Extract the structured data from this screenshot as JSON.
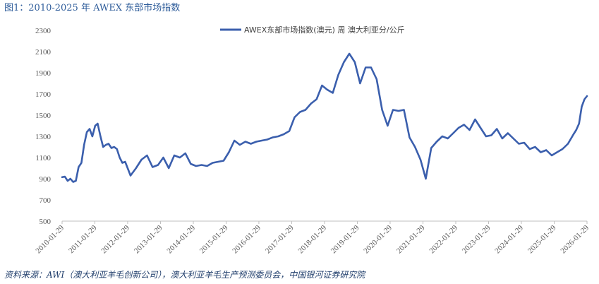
{
  "figure_title": "图1：2010-2025 年 AWEX 东部市场指数",
  "source_note": "资料来源：AWI（澳大利亚羊毛创新公司），澳大利亚羊毛生产预测委员会，中国银河证券研究院",
  "chart_data": {
    "type": "line",
    "title": "",
    "xlabel": "",
    "ylabel": "",
    "ylim": [
      500,
      2300
    ],
    "yticks": [
      500,
      700,
      900,
      1100,
      1300,
      1500,
      1700,
      1900,
      2100,
      2300
    ],
    "xticks": [
      "2010-01-29",
      "2011-01-29",
      "2012-01-29",
      "2013-01-29",
      "2014-01-29",
      "2015-01-29",
      "2016-01-29",
      "2017-01-29",
      "2018-01-29",
      "2019-01-29",
      "2020-01-29",
      "2021-01-29",
      "2022-01-29",
      "2023-01-29",
      "2024-01-29",
      "2025-01-29",
      "2026-01-29"
    ],
    "grid": false,
    "legend_position": "top",
    "line_color": "#3b5fad",
    "series": [
      {
        "name": "AWEX东部市场指数(澳元) 周 澳大利亚分/公斤",
        "x": [
          "2010-01-29",
          "2010-03-01",
          "2010-04-01",
          "2010-05-01",
          "2010-06-01",
          "2010-07-01",
          "2010-08-01",
          "2010-09-01",
          "2010-10-01",
          "2010-11-01",
          "2010-12-01",
          "2011-01-01",
          "2011-02-01",
          "2011-03-01",
          "2011-04-01",
          "2011-05-01",
          "2011-06-01",
          "2011-07-01",
          "2011-08-01",
          "2011-09-01",
          "2011-10-01",
          "2011-11-01",
          "2011-12-01",
          "2012-01-01",
          "2012-03-01",
          "2012-05-01",
          "2012-07-01",
          "2012-09-01",
          "2012-11-01",
          "2013-01-01",
          "2013-03-01",
          "2013-05-01",
          "2013-07-01",
          "2013-09-01",
          "2013-11-01",
          "2014-01-01",
          "2014-03-01",
          "2014-05-01",
          "2014-07-01",
          "2014-09-01",
          "2014-11-01",
          "2015-01-01",
          "2015-03-01",
          "2015-05-01",
          "2015-07-01",
          "2015-09-01",
          "2015-11-01",
          "2016-01-01",
          "2016-03-01",
          "2016-05-01",
          "2016-07-01",
          "2016-09-01",
          "2016-11-01",
          "2017-01-01",
          "2017-03-01",
          "2017-05-01",
          "2017-07-01",
          "2017-09-01",
          "2017-11-01",
          "2018-01-01",
          "2018-03-01",
          "2018-05-01",
          "2018-07-01",
          "2018-09-01",
          "2018-11-01",
          "2019-01-01",
          "2019-03-01",
          "2019-05-01",
          "2019-07-01",
          "2019-09-01",
          "2019-11-01",
          "2020-01-01",
          "2020-03-01",
          "2020-05-01",
          "2020-07-01",
          "2020-09-01",
          "2020-11-01",
          "2021-01-01",
          "2021-03-01",
          "2021-05-01",
          "2021-07-01",
          "2021-09-01",
          "2021-11-01",
          "2022-01-01",
          "2022-03-01",
          "2022-05-01",
          "2022-07-01",
          "2022-09-01",
          "2022-11-01",
          "2023-01-01",
          "2023-03-01",
          "2023-05-01",
          "2023-07-01",
          "2023-09-01",
          "2023-11-01",
          "2024-01-01",
          "2024-03-01",
          "2024-05-01",
          "2024-07-01",
          "2024-09-01",
          "2024-11-01",
          "2025-01-01",
          "2025-03-01",
          "2025-05-01",
          "2025-07-01",
          "2025-09-01",
          "2025-10-01",
          "2025-11-01",
          "2025-12-01",
          "2026-01-01",
          "2026-01-29"
        ],
        "values": [
          915,
          920,
          880,
          900,
          870,
          880,
          1010,
          1050,
          1220,
          1340,
          1370,
          1300,
          1400,
          1420,
          1300,
          1200,
          1220,
          1230,
          1190,
          1200,
          1180,
          1100,
          1050,
          1060,
          930,
          1000,
          1080,
          1120,
          1010,
          1030,
          1100,
          1000,
          1120,
          1100,
          1140,
          1040,
          1020,
          1030,
          1020,
          1050,
          1060,
          1070,
          1150,
          1260,
          1220,
          1250,
          1230,
          1250,
          1260,
          1270,
          1290,
          1300,
          1320,
          1350,
          1480,
          1530,
          1550,
          1610,
          1650,
          1780,
          1740,
          1710,
          1880,
          2000,
          2080,
          2000,
          1800,
          1950,
          1950,
          1840,
          1550,
          1400,
          1550,
          1540,
          1550,
          1290,
          1200,
          1080,
          900,
          1190,
          1250,
          1300,
          1280,
          1330,
          1380,
          1410,
          1360,
          1460,
          1380,
          1300,
          1310,
          1370,
          1280,
          1330,
          1280,
          1230,
          1240,
          1180,
          1200,
          1150,
          1170,
          1120,
          1150,
          1180,
          1230,
          1320,
          1360,
          1420,
          1580,
          1650,
          1680
        ]
      }
    ]
  }
}
